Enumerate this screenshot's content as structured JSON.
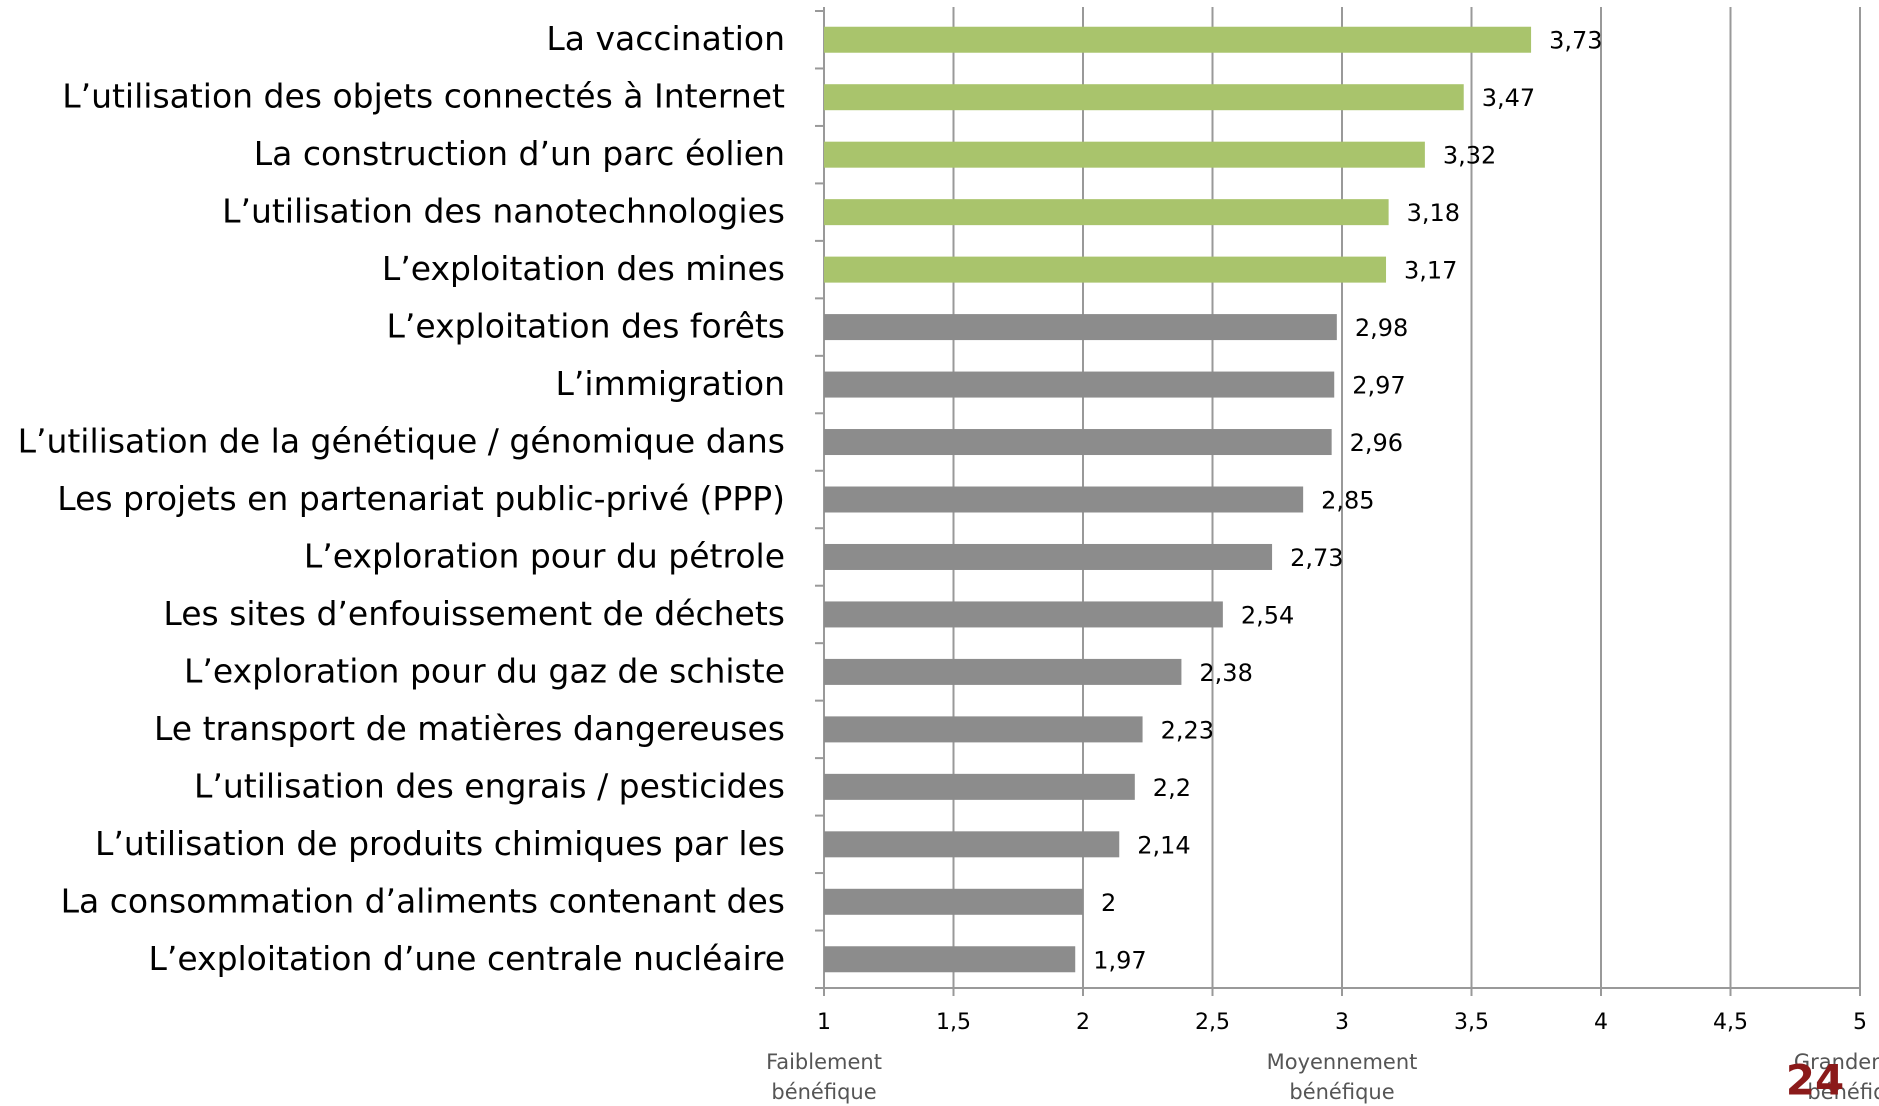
{
  "chart_data": {
    "type": "hbar",
    "categories": [
      "La vaccination",
      "L’utilisation des objets connectés à Internet",
      "La construction d’un parc éolien",
      "L’utilisation des nanotechnologies",
      "L’exploitation des mines",
      "L’exploitation des forêts",
      "L’immigration",
      "L’utilisation de la génétique / génomique dans",
      "Les projets en partenariat public-privé (PPP)",
      "L’exploration pour du pétrole",
      "Les sites d’enfouissement de déchets",
      "L’exploration pour du gaz de schiste",
      "Le transport de matières dangereuses",
      "L’utilisation des engrais / pesticides",
      "L’utilisation de produits chimiques par les",
      "La consommation d’aliments contenant des",
      "L’exploitation d’une centrale nucléaire"
    ],
    "values": [
      3.73,
      3.47,
      3.32,
      3.18,
      3.17,
      2.98,
      2.97,
      2.96,
      2.85,
      2.73,
      2.54,
      2.38,
      2.23,
      2.2,
      2.14,
      2,
      1.97
    ],
    "value_labels": [
      "3,73",
      "3,47",
      "3,32",
      "3,18",
      "3,17",
      "2,98",
      "2,97",
      "2,96",
      "2,85",
      "2,73",
      "2,54",
      "2,38",
      "2,23",
      "2,2",
      "2,14",
      "2",
      "1,97"
    ],
    "colors": [
      "#a9c46c",
      "#a9c46c",
      "#a9c46c",
      "#a9c46c",
      "#a9c46c",
      "#8c8c8c",
      "#8c8c8c",
      "#8c8c8c",
      "#8c8c8c",
      "#8c8c8c",
      "#8c8c8c",
      "#8c8c8c",
      "#8c8c8c",
      "#8c8c8c",
      "#8c8c8c",
      "#8c8c8c",
      "#8c8c8c"
    ],
    "xlim": [
      1,
      5
    ],
    "xticks": [
      1,
      {
        "value": 1.5,
        "label": "1,5"
      },
      2,
      {
        "value": 2.5,
        "label": "2,5"
      },
      3,
      {
        "value": 3.5,
        "label": "3,5"
      },
      4,
      {
        "value": 4.5,
        "label": "4,5"
      },
      5
    ],
    "grid": true,
    "annotations": [
      [
        "Faiblement",
        "bénéfique"
      ],
      [
        "Moyennement",
        "bénéfique"
      ],
      [
        "Grandement",
        "bénéfique"
      ]
    ]
  },
  "page_number": "24"
}
